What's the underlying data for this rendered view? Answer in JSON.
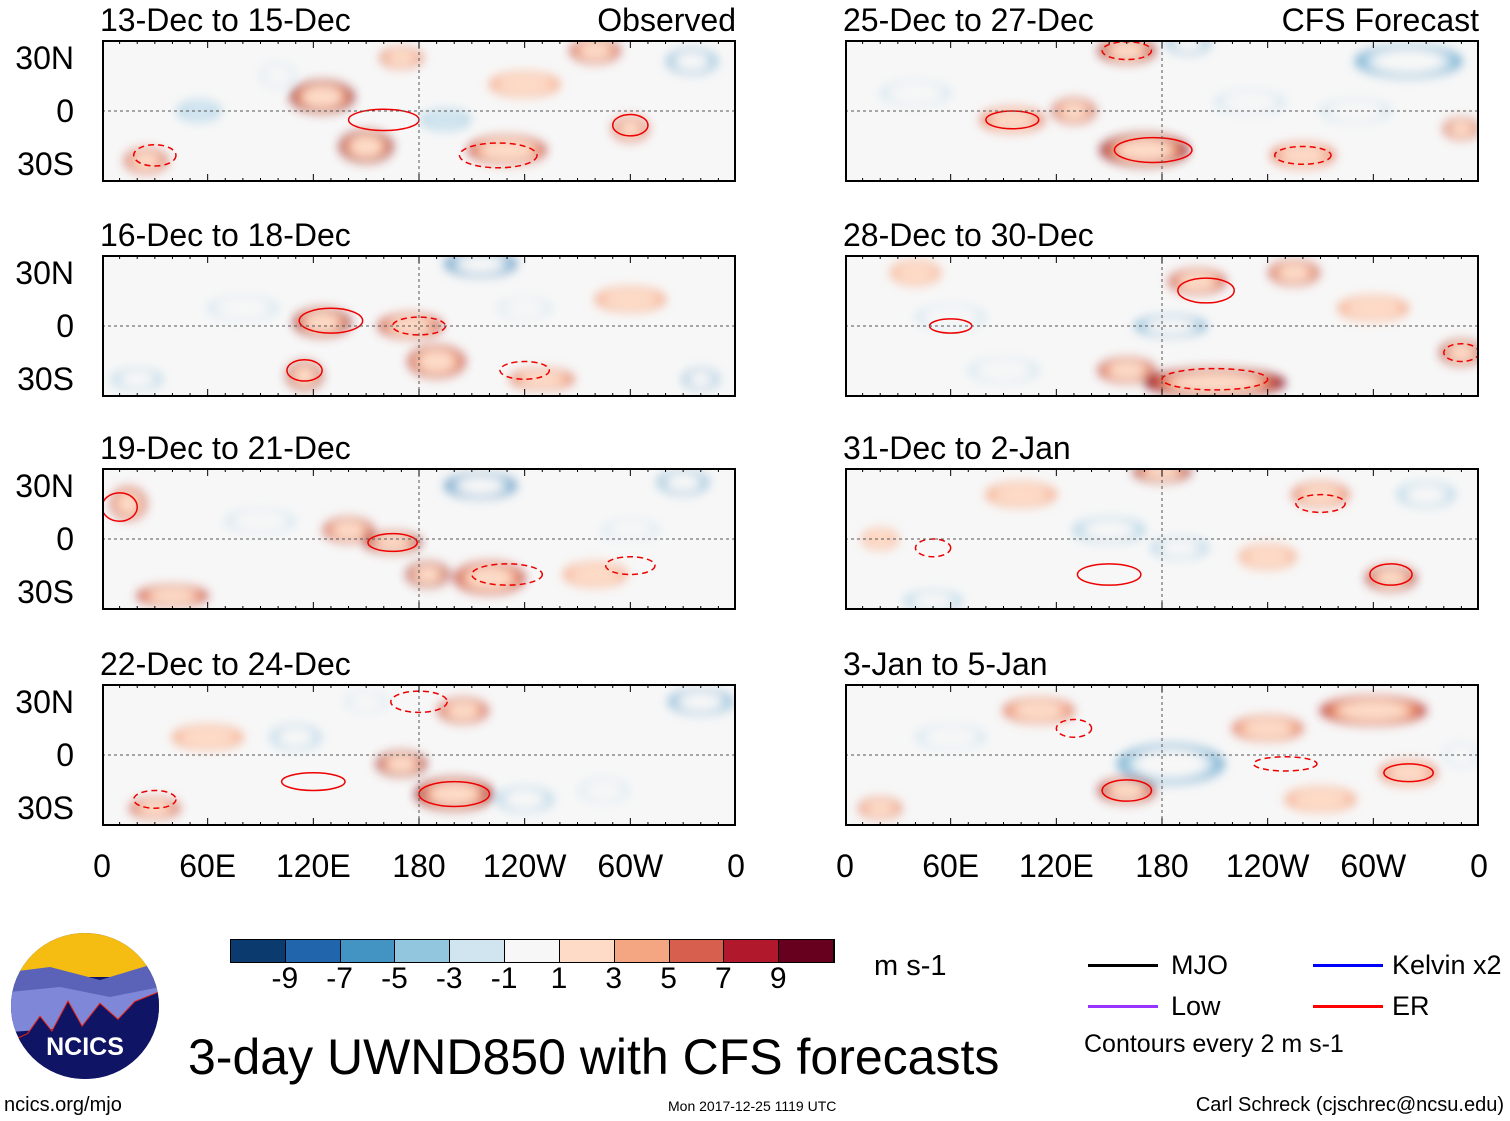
{
  "chart_data": {
    "type": "heatmap",
    "title": "3-day UWND850 with CFS forecasts",
    "variable": "850 hPa zonal wind anomaly",
    "units": "m s-1",
    "column_labels": [
      "Observed",
      "CFS Forecast"
    ],
    "lat_ticks": [
      "30N",
      "0",
      "30S"
    ],
    "lat_tick_values": [
      30,
      0,
      -30
    ],
    "lon_ticks": [
      "0",
      "60E",
      "120E",
      "180",
      "120W",
      "60W",
      "0"
    ],
    "lon_tick_values": [
      0,
      60,
      120,
      180,
      240,
      300,
      360
    ],
    "lon_range": [
      0,
      360
    ],
    "lat_range": [
      -40,
      40
    ],
    "colorbar": {
      "levels": [
        "-9",
        "-7",
        "-5",
        "-3",
        "-1",
        "1",
        "3",
        "5",
        "7",
        "9"
      ],
      "colors": [
        "#0b3a6f",
        "#2166ac",
        "#4393c3",
        "#92c5de",
        "#d1e5f0",
        "#f7f7f7",
        "#fddbc7",
        "#f4a582",
        "#d6604d",
        "#b2182b",
        "#67001f"
      ]
    },
    "panels": [
      {
        "title": "13-Dec to 15-Dec",
        "label": "Observed",
        "col": 0,
        "row": 0,
        "blobs": [
          [
            125,
            8,
            18,
            8,
            9
          ],
          [
            150,
            -20,
            15,
            8,
            9
          ],
          [
            230,
            -22,
            22,
            7,
            8
          ],
          [
            25,
            -28,
            12,
            6,
            7
          ],
          [
            300,
            -10,
            10,
            6,
            7
          ],
          [
            280,
            34,
            14,
            6,
            7
          ],
          [
            335,
            28,
            14,
            6,
            -7
          ],
          [
            195,
            -5,
            14,
            5,
            -4
          ],
          [
            55,
            0,
            12,
            5,
            -4
          ],
          [
            170,
            30,
            12,
            5,
            5
          ],
          [
            100,
            20,
            10,
            6,
            -3
          ],
          [
            240,
            15,
            20,
            6,
            3
          ]
        ],
        "contours": [
          [
            160,
            -5,
            20,
            6
          ],
          [
            225,
            -25,
            22,
            7
          ],
          [
            300,
            -8,
            10,
            6
          ],
          [
            30,
            -25,
            12,
            6
          ]
        ]
      },
      {
        "title": "16-Dec to 18-Dec",
        "label": "",
        "col": 0,
        "row": 1,
        "blobs": [
          [
            125,
            2,
            16,
            7,
            9
          ],
          [
            175,
            0,
            18,
            6,
            7
          ],
          [
            115,
            -28,
            10,
            7,
            9
          ],
          [
            190,
            -20,
            16,
            8,
            7
          ],
          [
            215,
            35,
            20,
            6,
            -9
          ],
          [
            250,
            -30,
            18,
            5,
            5
          ],
          [
            20,
            -30,
            14,
            5,
            -5
          ],
          [
            340,
            -30,
            10,
            5,
            -7
          ],
          [
            80,
            10,
            20,
            6,
            -3
          ],
          [
            300,
            15,
            20,
            6,
            3
          ],
          [
            240,
            10,
            15,
            5,
            -3
          ]
        ],
        "contours": [
          [
            130,
            3,
            18,
            7
          ],
          [
            180,
            0,
            15,
            5
          ],
          [
            115,
            -25,
            10,
            6
          ],
          [
            240,
            -25,
            14,
            5
          ]
        ]
      },
      {
        "title": "19-Dec to 21-Dec",
        "label": "",
        "col": 0,
        "row": 2,
        "blobs": [
          [
            215,
            30,
            20,
            6,
            -9
          ],
          [
            165,
            -2,
            16,
            5,
            9
          ],
          [
            140,
            5,
            14,
            6,
            7
          ],
          [
            220,
            -22,
            20,
            8,
            7
          ],
          [
            185,
            -20,
            12,
            6,
            9
          ],
          [
            40,
            -32,
            20,
            5,
            7
          ],
          [
            330,
            32,
            14,
            6,
            -7
          ],
          [
            15,
            20,
            10,
            8,
            7
          ],
          [
            90,
            10,
            20,
            6,
            -3
          ],
          [
            280,
            -20,
            18,
            6,
            3
          ],
          [
            300,
            5,
            16,
            5,
            -3
          ]
        ],
        "contours": [
          [
            165,
            -2,
            14,
            5
          ],
          [
            230,
            -20,
            20,
            6
          ],
          [
            10,
            18,
            10,
            8
          ],
          [
            300,
            -15,
            14,
            5
          ]
        ]
      },
      {
        "title": "22-Dec to 24-Dec",
        "label": "",
        "col": 0,
        "row": 3,
        "blobs": [
          [
            200,
            -22,
            22,
            8,
            9
          ],
          [
            170,
            -5,
            14,
            6,
            9
          ],
          [
            205,
            25,
            14,
            6,
            7
          ],
          [
            110,
            10,
            14,
            6,
            -5
          ],
          [
            240,
            -25,
            16,
            6,
            -5
          ],
          [
            340,
            30,
            18,
            6,
            -7
          ],
          [
            30,
            -30,
            14,
            5,
            7
          ],
          [
            150,
            30,
            12,
            5,
            -3
          ],
          [
            285,
            -20,
            14,
            6,
            -3
          ],
          [
            60,
            10,
            20,
            6,
            3
          ]
        ],
        "contours": [
          [
            200,
            -22,
            20,
            7
          ],
          [
            180,
            30,
            16,
            6
          ],
          [
            120,
            -15,
            18,
            5
          ],
          [
            30,
            -25,
            12,
            5
          ]
        ]
      },
      {
        "title": "25-Dec to 27-Dec",
        "label": "CFS Forecast",
        "col": 1,
        "row": 0,
        "blobs": [
          [
            170,
            -22,
            25,
            8,
            9
          ],
          [
            160,
            34,
            16,
            6,
            9
          ],
          [
            195,
            38,
            12,
            5,
            -7
          ],
          [
            320,
            28,
            30,
            8,
            -7
          ],
          [
            95,
            -5,
            18,
            6,
            5
          ],
          [
            230,
            5,
            20,
            6,
            -3
          ],
          [
            40,
            10,
            20,
            6,
            -3
          ],
          [
            260,
            -25,
            18,
            6,
            5
          ],
          [
            350,
            -10,
            10,
            5,
            7
          ],
          [
            130,
            0,
            12,
            6,
            7
          ],
          [
            290,
            0,
            20,
            6,
            -3
          ]
        ],
        "contours": [
          [
            175,
            -22,
            22,
            7
          ],
          [
            160,
            34,
            14,
            5
          ],
          [
            95,
            -5,
            15,
            5
          ],
          [
            260,
            -25,
            16,
            5
          ]
        ]
      },
      {
        "title": "28-Dec to 30-Dec",
        "label": "",
        "col": 1,
        "row": 1,
        "blobs": [
          [
            210,
            -32,
            40,
            7,
            9
          ],
          [
            185,
            0,
            20,
            5,
            -7
          ],
          [
            160,
            -25,
            16,
            6,
            7
          ],
          [
            200,
            25,
            16,
            6,
            7
          ],
          [
            255,
            30,
            14,
            6,
            7
          ],
          [
            350,
            -15,
            12,
            6,
            9
          ],
          [
            90,
            -25,
            20,
            6,
            -3
          ],
          [
            60,
            5,
            20,
            6,
            -3
          ],
          [
            300,
            10,
            20,
            6,
            3
          ],
          [
            40,
            30,
            14,
            6,
            3
          ]
        ],
        "contours": [
          [
            205,
            20,
            16,
            7
          ],
          [
            210,
            -30,
            30,
            6
          ],
          [
            60,
            0,
            12,
            4
          ],
          [
            350,
            -15,
            10,
            5
          ]
        ]
      },
      {
        "title": "31-Dec to 2-Jan",
        "label": "",
        "col": 1,
        "row": 2,
        "blobs": [
          [
            180,
            38,
            16,
            5,
            9
          ],
          [
            310,
            -22,
            14,
            6,
            9
          ],
          [
            150,
            5,
            20,
            6,
            -5
          ],
          [
            190,
            -5,
            16,
            5,
            -5
          ],
          [
            330,
            25,
            16,
            6,
            -5
          ],
          [
            50,
            -35,
            16,
            5,
            -5
          ],
          [
            240,
            -10,
            16,
            6,
            3
          ],
          [
            100,
            25,
            20,
            6,
            3
          ],
          [
            270,
            25,
            16,
            6,
            5
          ],
          [
            20,
            0,
            10,
            5,
            3
          ]
        ],
        "contours": [
          [
            310,
            -20,
            12,
            6
          ],
          [
            50,
            -5,
            10,
            5
          ],
          [
            150,
            -20,
            18,
            6
          ],
          [
            270,
            20,
            14,
            5
          ]
        ]
      },
      {
        "title": "3-Jan to 5-Jan",
        "label": "",
        "col": 1,
        "row": 3,
        "blobs": [
          [
            185,
            -5,
            30,
            10,
            -7
          ],
          [
            160,
            -20,
            16,
            6,
            9
          ],
          [
            300,
            25,
            30,
            7,
            7
          ],
          [
            320,
            -10,
            16,
            6,
            5
          ],
          [
            110,
            25,
            20,
            6,
            5
          ],
          [
            60,
            10,
            20,
            6,
            -3
          ],
          [
            240,
            15,
            20,
            6,
            5
          ],
          [
            270,
            -25,
            20,
            6,
            3
          ],
          [
            350,
            0,
            10,
            6,
            -3
          ],
          [
            20,
            -30,
            12,
            5,
            5
          ]
        ],
        "contours": [
          [
            160,
            -20,
            14,
            6
          ],
          [
            130,
            15,
            10,
            5
          ],
          [
            320,
            -10,
            14,
            5
          ],
          [
            250,
            -5,
            18,
            4
          ]
        ]
      }
    ]
  },
  "legend": {
    "units_label": "m s-1",
    "items": [
      {
        "label": "MJO",
        "color": "#000000"
      },
      {
        "label": "Low",
        "color": "#9933ff"
      },
      {
        "label": "Kelvin x2",
        "color": "#0000ff"
      },
      {
        "label": "ER",
        "color": "#ff0000"
      }
    ],
    "contour_note": "Contours every 2 m s-1"
  },
  "footer": {
    "url": "ncics.org/mjo",
    "timestamp": "Mon 2017-12-25 1119 UTC",
    "author": "Carl Schreck (cjschrec@ncsu.edu)",
    "logo_text": "NCICS"
  }
}
